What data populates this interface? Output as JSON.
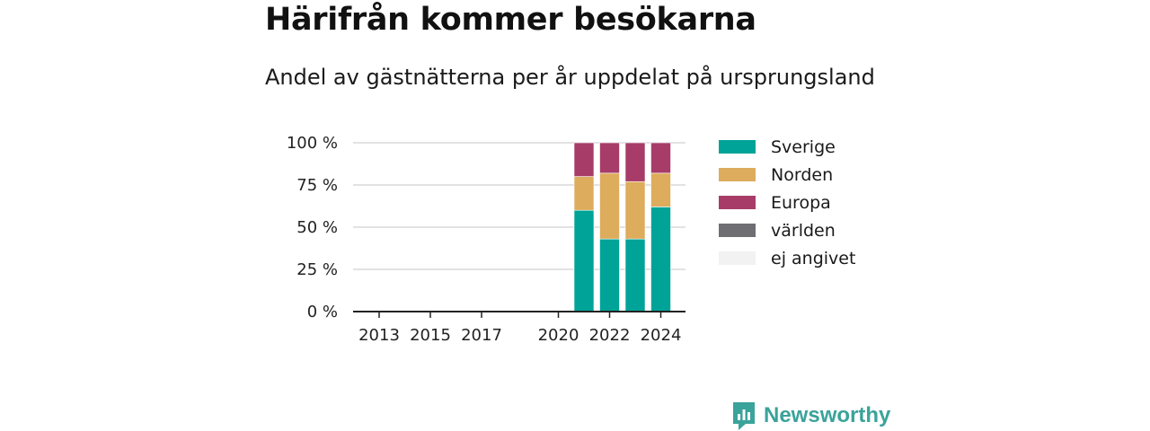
{
  "header": {
    "title": "Härifrån kommer besökarna",
    "subtitle": "Andel av gästnätterna per år uppdelat på ursprungsland"
  },
  "chart_data": {
    "type": "bar",
    "stacked": true,
    "categories": [
      "2013",
      "2014",
      "2015",
      "2016",
      "2017",
      "2018",
      "2019",
      "2020",
      "2021",
      "2022",
      "2023",
      "2024"
    ],
    "x_tick_labels": [
      "2013",
      "2015",
      "2017",
      "2020",
      "2022",
      "2024"
    ],
    "y_tick_labels": [
      "100 %",
      "75 %",
      "50 %",
      "25 %",
      "0 %"
    ],
    "ylim": [
      0,
      100
    ],
    "grid": true,
    "legend_position": "right",
    "series": [
      {
        "name": "Sverige",
        "color": "#00a398",
        "values": [
          null,
          null,
          null,
          null,
          null,
          null,
          null,
          null,
          60,
          43,
          43,
          62
        ]
      },
      {
        "name": "Norden",
        "color": "#ddac5c",
        "values": [
          null,
          null,
          null,
          null,
          null,
          null,
          null,
          null,
          20,
          39,
          34,
          20
        ]
      },
      {
        "name": "Europa",
        "color": "#a83c69",
        "values": [
          null,
          null,
          null,
          null,
          null,
          null,
          null,
          null,
          20,
          18,
          23,
          18
        ]
      },
      {
        "name": "världen",
        "color": "#6e6e73",
        "values": [
          null,
          null,
          null,
          null,
          null,
          null,
          null,
          null,
          0,
          0,
          0,
          0
        ]
      },
      {
        "name": "ej angivet",
        "color": "#f2f2f2",
        "values": [
          null,
          null,
          null,
          null,
          null,
          null,
          null,
          null,
          0,
          0,
          0,
          0
        ]
      }
    ]
  },
  "brand": {
    "name": "Newsworthy",
    "icon": "newsworthy-logo-icon",
    "color": "#3aa39a"
  }
}
